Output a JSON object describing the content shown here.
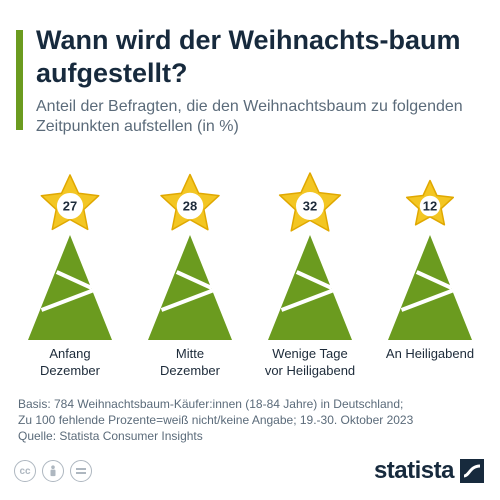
{
  "header": {
    "title": "Wann wird der Weihnachts-baum aufgestellt?",
    "subtitle": "Anteil der Befragten, die den Weihnachtsbaum zu folgenden Zeitpunkten aufstellen (in %)"
  },
  "chart_data": {
    "type": "bar",
    "title": "Wann wird der Weihnachts-baum aufgestellt?",
    "subtitle": "Anteil der Befragten, die den Weihnachtsbaum zu folgenden Zeitpunkten aufstellen (in %)",
    "categories": [
      "Anfang\nDezember",
      "Mitte\nDezember",
      "Wenige Tage\nvor Heiligabend",
      "An Heiligabend"
    ],
    "values": [
      27,
      28,
      32,
      12
    ],
    "unit": "%",
    "grid": false
  },
  "footnote": {
    "basis": "Basis: 784 Weihnachtsbaum-Käufer:innen (18-84 Jahre) in Deutschland;",
    "note": "Zu 100 fehlende Prozente=weiß nicht/keine Angabe; 19.-30. Oktober 2023",
    "source": "Quelle: Statista Consumer Insights"
  },
  "brand": {
    "name": "statista"
  },
  "icons": [
    "cc-icon",
    "by-icon",
    "nd-icon"
  ],
  "colors": {
    "tree": "#6b9b1f",
    "star": "#f3c623",
    "star_stroke": "#e0a800",
    "accent": "#6b9b1f",
    "title": "#172a3d"
  }
}
